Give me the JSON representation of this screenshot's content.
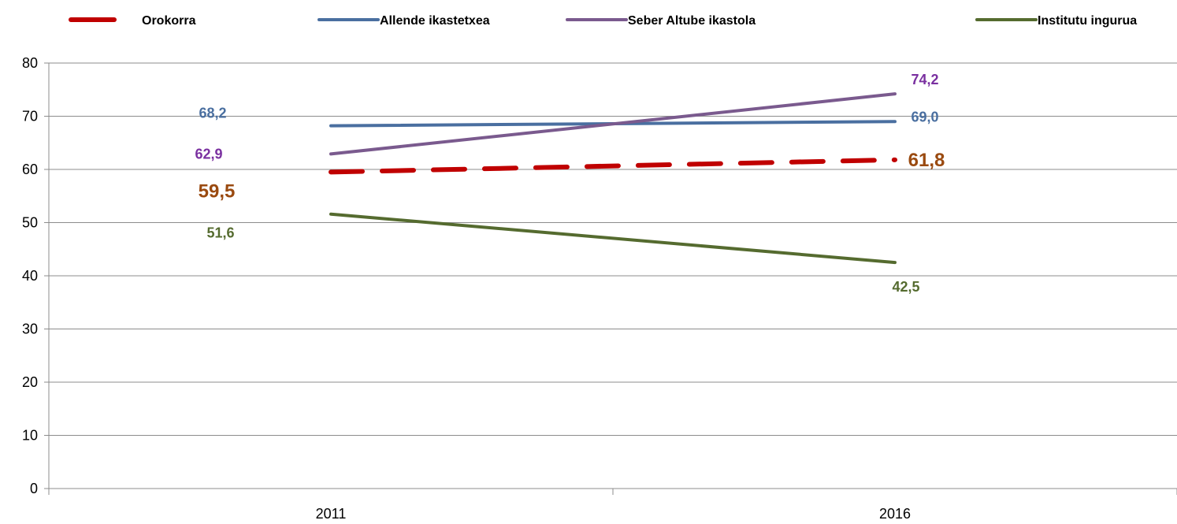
{
  "chart_data": {
    "type": "line",
    "categories": [
      "2011",
      "2016"
    ],
    "ylim": [
      0,
      80
    ],
    "yticks": [
      "0",
      "10",
      "20",
      "30",
      "40",
      "50",
      "60",
      "70",
      "80"
    ],
    "grid": true,
    "legend_position": "top",
    "series": [
      {
        "name": "Orokorra",
        "values": [
          59.5,
          61.8
        ],
        "labels": [
          "59,5",
          "61,8"
        ],
        "color": "#c00000",
        "dashed": true
      },
      {
        "name": "Allende ikastetxea",
        "values": [
          68.2,
          69.0
        ],
        "labels": [
          "68,2",
          "69,0"
        ],
        "color": "#4a6fa0",
        "dashed": false
      },
      {
        "name": "Seber Altube ikastola",
        "values": [
          62.9,
          74.2
        ],
        "labels": [
          "62,9",
          "74,2"
        ],
        "color": "#7a5a8e",
        "dashed": false
      },
      {
        "name": "Institutu ingurua",
        "values": [
          51.6,
          42.5
        ],
        "labels": [
          "51,6",
          "42,5"
        ],
        "color": "#556b2f",
        "dashed": false
      }
    ],
    "label_colors": {
      "Orokorra": "#9a4a10",
      "Allende ikastetxea": "#4a6fa0",
      "Seber Altube ikastola": "#7a30a0",
      "Institutu ingurua": "#556b2f"
    }
  }
}
